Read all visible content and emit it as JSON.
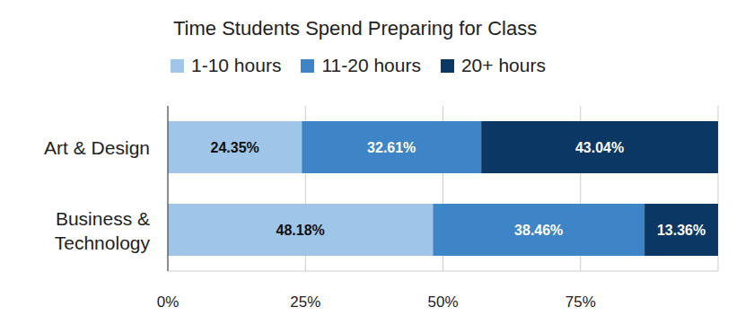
{
  "chart_data": {
    "type": "bar",
    "title": "Time Students Spend Preparing for Class",
    "orientation": "horizontal",
    "stacked": true,
    "categories": [
      "Art & Design",
      "Business & Technology"
    ],
    "series": [
      {
        "name": "1-10 hours",
        "color": "#9fc5e8",
        "values": [
          24.35,
          48.18
        ],
        "value_labels": [
          "24.35%",
          "48.18%"
        ]
      },
      {
        "name": "11-20 hours",
        "color": "#3d85c6",
        "values": [
          32.61,
          38.46
        ],
        "value_labels": [
          "32.61%",
          "38.46%"
        ]
      },
      {
        "name": "20+ hours",
        "color": "#0a3764",
        "values": [
          43.04,
          13.36
        ],
        "value_labels": [
          "43.04%",
          "13.36%"
        ]
      }
    ],
    "xlim": [
      0,
      100
    ],
    "xticks": [
      {
        "value": 0,
        "label": "0%"
      },
      {
        "value": 25,
        "label": "25%"
      },
      {
        "value": 50,
        "label": "50%"
      },
      {
        "value": 75,
        "label": "75%"
      }
    ],
    "grid": true,
    "legend": "top",
    "data_labels": true
  }
}
